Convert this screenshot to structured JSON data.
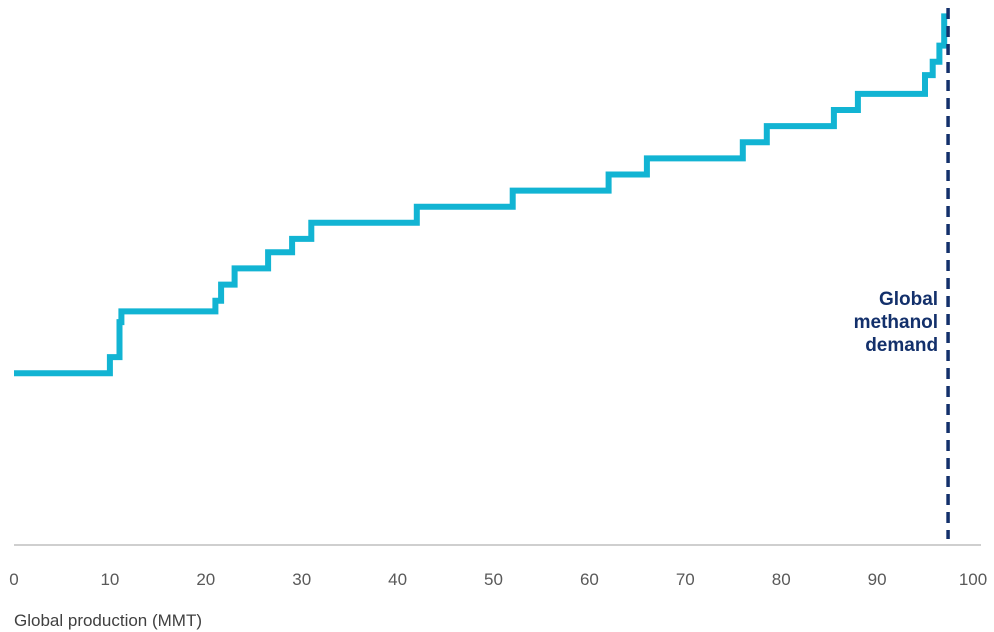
{
  "chart_data": {
    "type": "line",
    "step": true,
    "xlabel": "Global production (MMT)",
    "ylabel": "",
    "xlim": [
      0,
      100
    ],
    "ylim": [
      0,
      100
    ],
    "x_ticks": [
      "0",
      "10",
      "20",
      "30",
      "40",
      "50",
      "60",
      "70",
      "80",
      "90",
      "100"
    ],
    "y_axis_visible": false,
    "grid": false,
    "series": [
      {
        "color": "#12B4D3",
        "points": [
          [
            0,
            32
          ],
          [
            10,
            32
          ],
          [
            10,
            35
          ],
          [
            11,
            35
          ],
          [
            11,
            41.5
          ],
          [
            11.2,
            41.5
          ],
          [
            11.2,
            43.5
          ],
          [
            21,
            43.5
          ],
          [
            21,
            45.5
          ],
          [
            21.6,
            45.5
          ],
          [
            21.6,
            48.5
          ],
          [
            23,
            48.5
          ],
          [
            23,
            51.5
          ],
          [
            26.5,
            51.5
          ],
          [
            26.5,
            54.5
          ],
          [
            29,
            54.5
          ],
          [
            29,
            57
          ],
          [
            31,
            57
          ],
          [
            31,
            60
          ],
          [
            42,
            60
          ],
          [
            42,
            63
          ],
          [
            52,
            63
          ],
          [
            52,
            66
          ],
          [
            62,
            66
          ],
          [
            62,
            69
          ],
          [
            66,
            69
          ],
          [
            66,
            72
          ],
          [
            76,
            72
          ],
          [
            76,
            75
          ],
          [
            78.5,
            75
          ],
          [
            78.5,
            78
          ],
          [
            85.5,
            78
          ],
          [
            85.5,
            81
          ],
          [
            88,
            81
          ],
          [
            88,
            84
          ],
          [
            95,
            84
          ],
          [
            95,
            87.5
          ],
          [
            95.8,
            87.5
          ],
          [
            95.8,
            90
          ],
          [
            96.5,
            90
          ],
          [
            96.5,
            93
          ],
          [
            97,
            93
          ],
          [
            97,
            99
          ]
        ]
      }
    ],
    "annotations": [
      {
        "type": "vline",
        "x": 97.4,
        "style": "dashed",
        "color": "#13306B",
        "label": [
          "Global",
          "methanol",
          "demand"
        ]
      }
    ]
  },
  "colors": {
    "line": "#12B4D3",
    "demand": "#13306B",
    "axis": "#BFBFBF"
  }
}
